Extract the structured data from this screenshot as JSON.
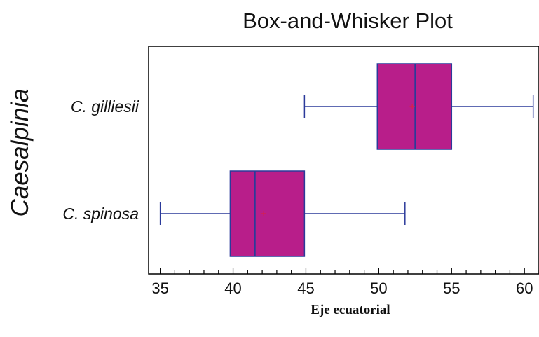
{
  "chart_data": {
    "type": "boxplot",
    "title": "Box-and-Whisker Plot",
    "xlabel": "Eje ecuatorial",
    "ylabel": "Caesalpinia",
    "xlim": [
      34.2,
      61
    ],
    "xticks": [
      35,
      40,
      45,
      50,
      55,
      60
    ],
    "minor_tick_step": 1,
    "grid": false,
    "categories": [
      "C. gilliesii",
      "C. spinosa"
    ],
    "boxes": [
      {
        "name": "C. gilliesii",
        "min": 44.9,
        "q1": 49.9,
        "median": 52.5,
        "q3": 55.0,
        "max": 60.6,
        "mean": 52.3
      },
      {
        "name": "C. spinosa",
        "min": 35.0,
        "q1": 39.8,
        "median": 41.5,
        "q3": 44.9,
        "max": 51.8,
        "mean": 42.1
      }
    ],
    "colors": {
      "box_fill": "#B81E8A",
      "box_stroke": "#2B3A9A",
      "whisker": "#2B3A9A",
      "mean_marker": "#E0203A",
      "axis": "#000000"
    }
  }
}
